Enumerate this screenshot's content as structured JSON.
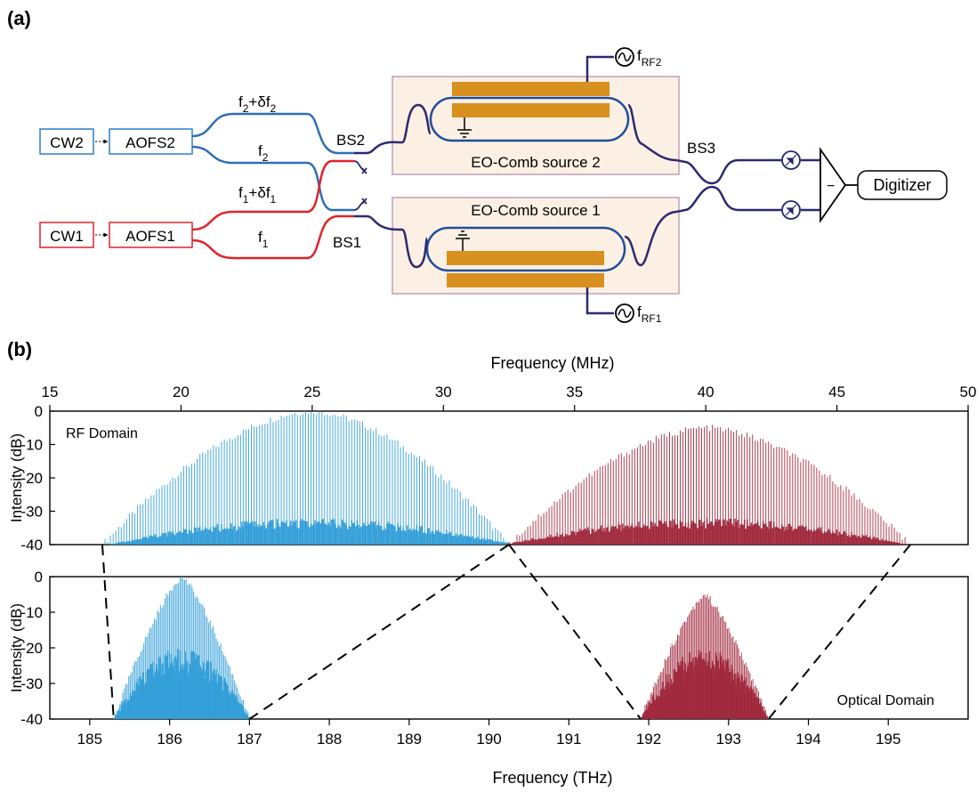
{
  "panel_a": {
    "label": "(a)",
    "cw2": "CW2",
    "cw1": "CW1",
    "aofs2": "AOFS2",
    "aofs1": "AOFS1",
    "upper_arm2": {
      "base": "f",
      "sub": "2",
      "mid": "+δf",
      "sub2": "2"
    },
    "lower_arm2": {
      "base": "f",
      "sub": "2"
    },
    "upper_arm1": {
      "base": "f",
      "sub": "1",
      "mid": "+δf",
      "sub2": "1"
    },
    "lower_arm1": {
      "base": "f",
      "sub": "1"
    },
    "bs2": "BS2",
    "bs1": "BS1",
    "bs3": "BS3",
    "comb2_label": "EO-Comb source 2",
    "comb1_label": "EO-Comb source 1",
    "rf2": {
      "base": "f",
      "sub": "RF2"
    },
    "rf1": {
      "base": "f",
      "sub": "RF1"
    },
    "digitizer": "Digitizer",
    "minus": "−",
    "colors": {
      "cw2": "#2f7fc0",
      "cw1": "#e0232a",
      "fiber_dark": "#2c2a6e",
      "electrode": "#d8901f",
      "box_fill": "#fcf0e4",
      "box_border": "#c29fb8",
      "ring": "#1f4e9a"
    }
  },
  "panel_b": {
    "label": "(b)",
    "chart_data": [
      {
        "type": "line",
        "domain_label": "RF Domain",
        "xlabel": "Frequency (MHz)",
        "ylabel": "Intensity (dB)",
        "xlim": [
          15,
          50
        ],
        "ylim": [
          -40,
          0
        ],
        "xticks": [
          "15",
          "20",
          "25",
          "30",
          "35",
          "40",
          "45",
          "50"
        ],
        "yticks": [
          "0",
          "-10",
          "-20",
          "-30",
          "-40"
        ],
        "series": [
          {
            "color": "#2a9ad6",
            "x_range": [
              17.0,
              32.5
            ],
            "peak_x": 25.0,
            "peak_y": 0,
            "edge_y": -40
          },
          {
            "color": "#9c2035",
            "x_range": [
              32.5,
              47.8
            ],
            "peak_x": 40.0,
            "peak_y": -5,
            "edge_y": -40
          }
        ]
      },
      {
        "type": "line",
        "domain_label": "Optical Domain",
        "xlabel": "Frequency (THz)",
        "ylabel": "Intensity (dB)",
        "xlim": [
          184.5,
          196
        ],
        "ylim": [
          -40,
          0
        ],
        "xticks": [
          "185",
          "186",
          "187",
          "188",
          "189",
          "190",
          "191",
          "192",
          "193",
          "194",
          "195"
        ],
        "yticks": [
          "0",
          "-10",
          "-20",
          "-30",
          "-40"
        ],
        "series": [
          {
            "color": "#2a9ad6",
            "x_range": [
              185.3,
              187.0
            ],
            "peak_x": 186.15,
            "peak_y": 0,
            "edge_y": -40
          },
          {
            "color": "#9c2035",
            "x_range": [
              191.9,
              193.5
            ],
            "peak_x": 192.7,
            "peak_y": -5,
            "edge_y": -40
          }
        ]
      }
    ]
  }
}
